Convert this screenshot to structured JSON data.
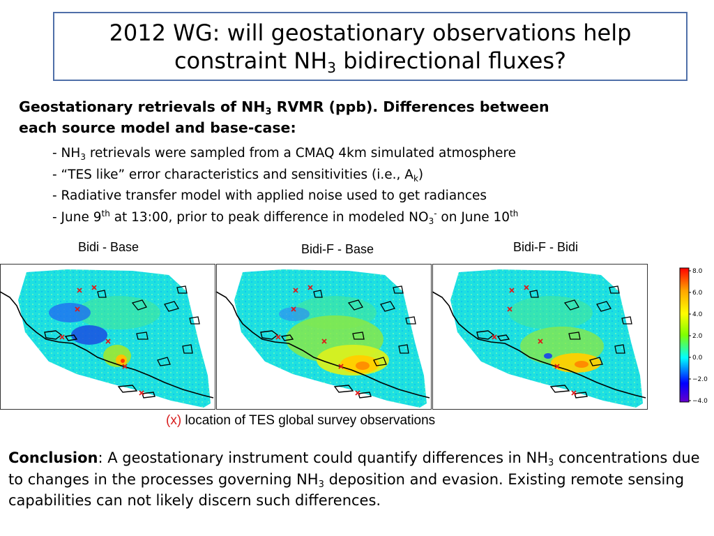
{
  "title": {
    "line1": "2012 WG: will geostationary observations help",
    "line2_pre": "constraint NH",
    "line2_sub": "3",
    "line2_post": " bidirectional fluxes?"
  },
  "heading": {
    "pre": "Geostationary retrievals of NH",
    "sub": "3",
    "mid": " RVMR (ppb). Differences between",
    "line2": "each source model and base-case:"
  },
  "bullets": [
    {
      "pre": "- NH",
      "sub": "3",
      "post": " retrievals were sampled from a CMAQ 4km simulated atmosphere"
    },
    {
      "pre": "- “TES like” error characteristics and sensitivities (i.e., A",
      "sub": "k",
      "post": ")"
    },
    {
      "text": "- Radiative transfer model with applied noise used to get radiances"
    },
    {
      "a": "- June 9",
      "sup1": "th",
      "b": " at 13:00, prior to peak difference in modeled NO",
      "sub": "3",
      "sup2": "-",
      "c": " on June 10",
      "sup3": "th"
    }
  ],
  "panels": [
    {
      "label": "Bidi - Base"
    },
    {
      "label": "Bidi-F - Base"
    },
    {
      "label": "Bidi-F - Bidi"
    }
  ],
  "colorbar": {
    "ticks": [
      "8.0",
      "6.0",
      "4.0",
      "2.0",
      "0.0",
      "−2.0",
      "−4.0"
    ],
    "colors": [
      "#ff0000",
      "#ffa500",
      "#ffff00",
      "#7fff00",
      "#00ffff",
      "#0000ff",
      "#6600cc"
    ]
  },
  "legend": {
    "marker": "(x)",
    "text": " location of TES global survey observations"
  },
  "conclusion": {
    "label": "Conclusion",
    "part1": ": A geostationary instrument could quantify differences in NH",
    "sub1": "3",
    "part2": " concentrations due to changes in the processes governing NH",
    "sub2": "3",
    "part3": " deposition and evasion.  Existing remote sensing capabilities can not likely discern such differences."
  }
}
